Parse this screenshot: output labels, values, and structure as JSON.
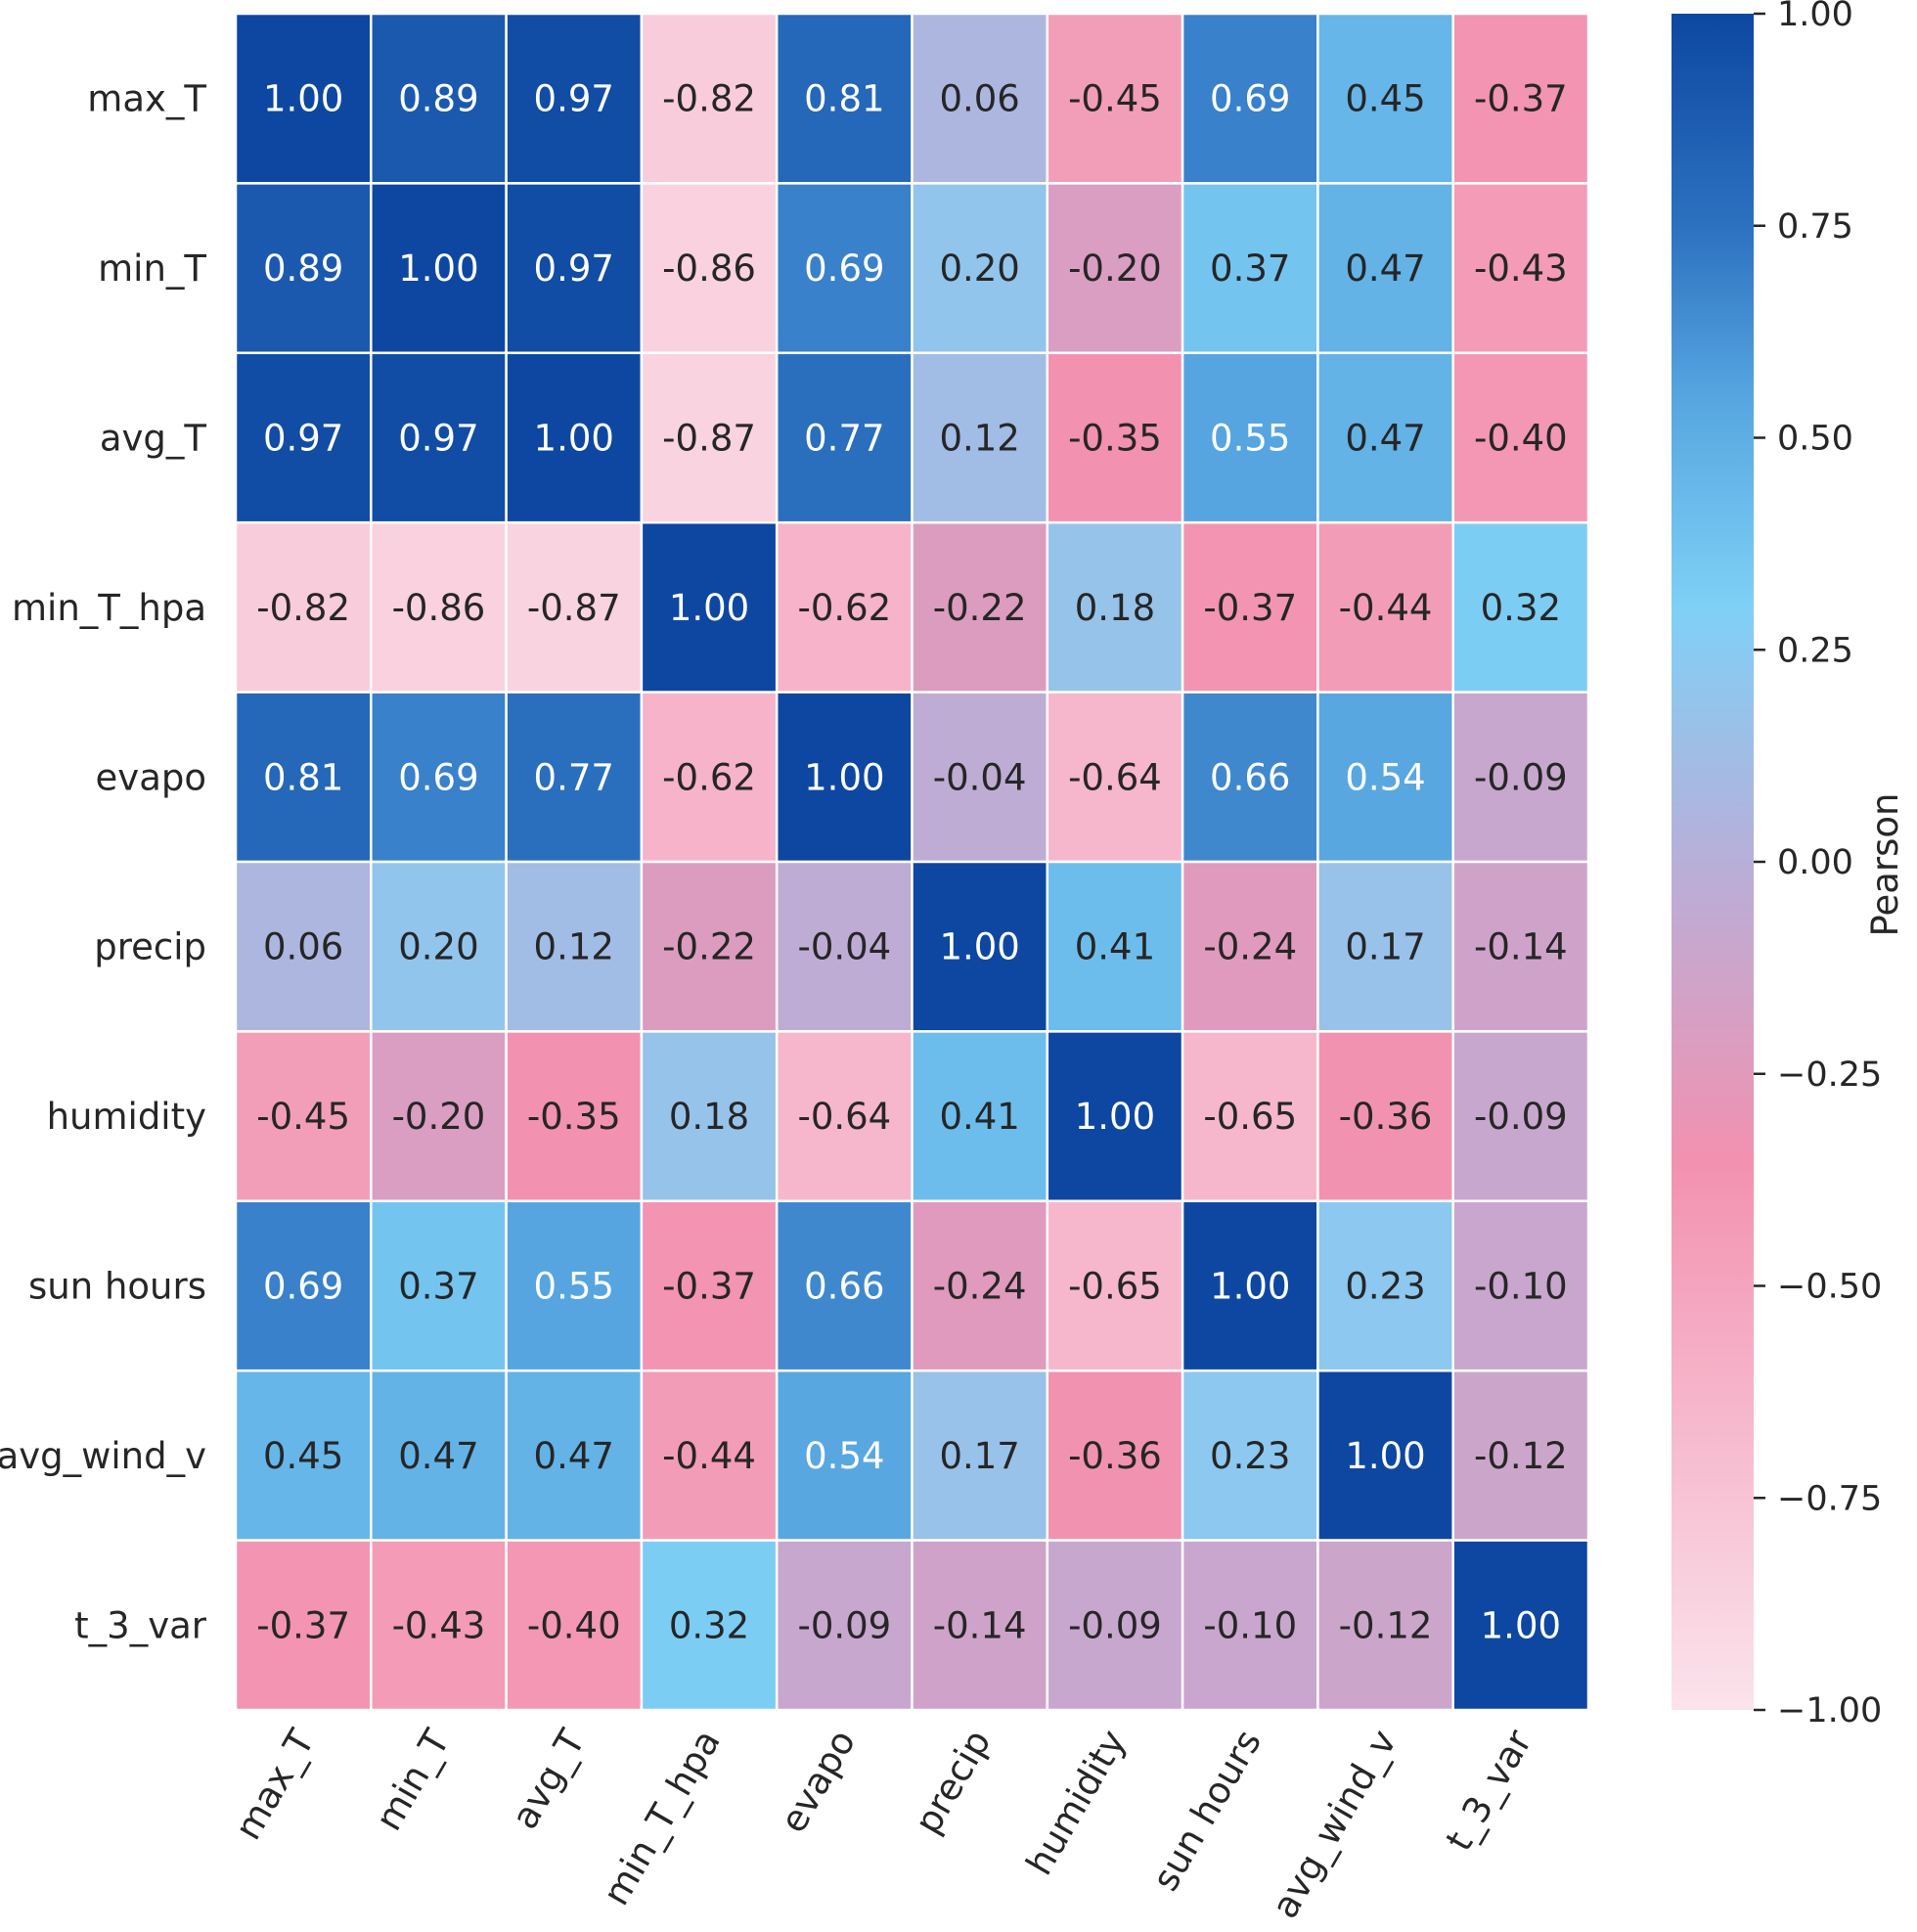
{
  "chart_data": {
    "type": "heatmap",
    "title": "",
    "xlabel": "",
    "ylabel": "",
    "rows": [
      "max_T",
      "min_T",
      "avg_T",
      "min_T_hpa",
      "evapo",
      "precip",
      "humidity",
      "sun hours",
      "avg_wind_v",
      "t_3_var"
    ],
    "columns": [
      "max_T",
      "min_T",
      "avg_T",
      "min_T_hpa",
      "evapo",
      "precip",
      "humidity",
      "sun hours",
      "avg_wind_v",
      "t_3_var"
    ],
    "values": [
      [
        1.0,
        0.89,
        0.97,
        -0.82,
        0.81,
        0.06,
        -0.45,
        0.69,
        0.45,
        -0.37
      ],
      [
        0.89,
        1.0,
        0.97,
        -0.86,
        0.69,
        0.2,
        -0.2,
        0.37,
        0.47,
        -0.43
      ],
      [
        0.97,
        0.97,
        1.0,
        -0.87,
        0.77,
        0.12,
        -0.35,
        0.55,
        0.47,
        -0.4
      ],
      [
        -0.82,
        -0.86,
        -0.87,
        1.0,
        -0.62,
        -0.22,
        0.18,
        -0.37,
        -0.44,
        0.32
      ],
      [
        0.81,
        0.69,
        0.77,
        -0.62,
        1.0,
        -0.04,
        -0.64,
        0.66,
        0.54,
        -0.09
      ],
      [
        0.06,
        0.2,
        0.12,
        -0.22,
        -0.04,
        1.0,
        0.41,
        -0.24,
        0.17,
        -0.14
      ],
      [
        -0.45,
        -0.2,
        -0.35,
        0.18,
        -0.64,
        0.41,
        1.0,
        -0.65,
        -0.36,
        -0.09
      ],
      [
        0.69,
        0.37,
        0.55,
        -0.37,
        0.66,
        -0.24,
        -0.65,
        1.0,
        0.23,
        -0.1
      ],
      [
        0.45,
        0.47,
        0.47,
        -0.44,
        0.54,
        0.17,
        -0.36,
        0.23,
        1.0,
        -0.12
      ],
      [
        -0.37,
        -0.43,
        -0.4,
        0.32,
        -0.09,
        -0.14,
        -0.09,
        -0.1,
        -0.12,
        1.0
      ]
    ],
    "value_format": "2 decimals",
    "vmin": -1.0,
    "vmax": 1.0,
    "colorbar": {
      "label": "Pearson",
      "ticks": [
        1.0,
        0.75,
        0.5,
        0.25,
        0.0,
        -0.25,
        -0.5,
        -0.75,
        -1.0
      ],
      "tick_labels": [
        "1.00",
        "0.75",
        "0.50",
        "0.25",
        "0.00",
        "−0.25",
        "−0.50",
        "−0.75",
        "−1.00"
      ],
      "placement": "right"
    },
    "colormap": [
      {
        "value": -1.0,
        "color": "#fbe3ec"
      },
      {
        "value": -0.35,
        "color": "#f291b0"
      },
      {
        "value": 0.0,
        "color": "#b8afd9"
      },
      {
        "value": 0.3,
        "color": "#7fd0f6"
      },
      {
        "value": 0.55,
        "color": "#56a5e0"
      },
      {
        "value": 0.75,
        "color": "#2c71c0"
      },
      {
        "value": 1.0,
        "color": "#0d47a1"
      }
    ],
    "colors": {
      "grid_line": "#ffffff",
      "text_dark": "#262626",
      "text_light": "#ffffff"
    },
    "grid": false
  }
}
